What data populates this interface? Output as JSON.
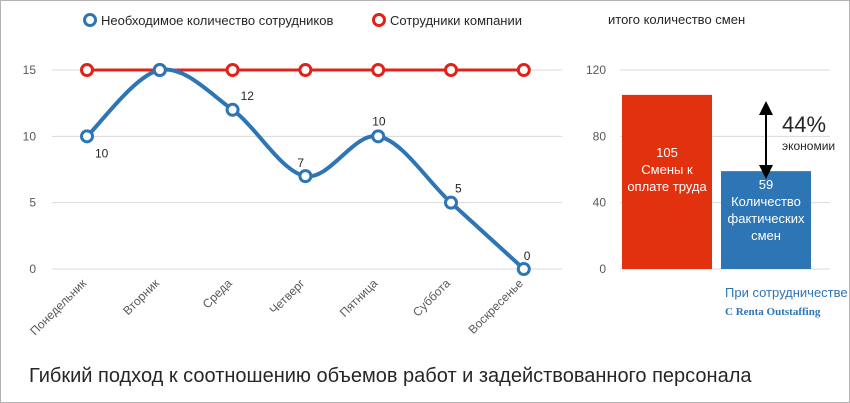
{
  "caption": "Гибкий подход к соотношению объемов работ и задействованного персонала",
  "chart_data": [
    {
      "type": "line",
      "categories": [
        "Понедельник",
        "Вторник",
        "Среда",
        "Четверг",
        "Пятница",
        "Суббота",
        "Воскресенье"
      ],
      "series": [
        {
          "name": "Необходимое количество сотрудников",
          "values": [
            10,
            15,
            12,
            7,
            10,
            5,
            0
          ],
          "color": "#2e75b6",
          "smooth": true,
          "labels": [
            "10",
            "",
            "12",
            "7",
            "10",
            "5",
            "0"
          ]
        },
        {
          "name": "Сотрудники компании",
          "values": [
            15,
            15,
            15,
            15,
            15,
            15,
            15
          ],
          "color": "#e0231a",
          "smooth": false
        }
      ],
      "yticks": [
        "0",
        "5",
        "10",
        "15"
      ],
      "ylim": [
        0,
        15
      ],
      "grid": true,
      "legend": "top"
    },
    {
      "type": "bar",
      "title": "итого количество смен",
      "categories": [
        "Смены к оплате труда",
        "Количество фактических смен"
      ],
      "values": [
        105,
        59
      ],
      "bar_labels": [
        {
          "value": "105",
          "lines": [
            "Смены к",
            "оплате труда"
          ]
        },
        {
          "value": "59",
          "lines": [
            "Количество",
            "фактических",
            "смен"
          ]
        }
      ],
      "colors": [
        "#e2310f",
        "#2e75b6"
      ],
      "yticks": [
        "0",
        "40",
        "80",
        "120"
      ],
      "ylim": [
        0,
        120
      ],
      "grid": true,
      "annotation": {
        "percent": "44%",
        "text": "экономии"
      },
      "footnote": [
        "При сотрудничестве",
        "С Renta Outstaffing"
      ]
    }
  ]
}
